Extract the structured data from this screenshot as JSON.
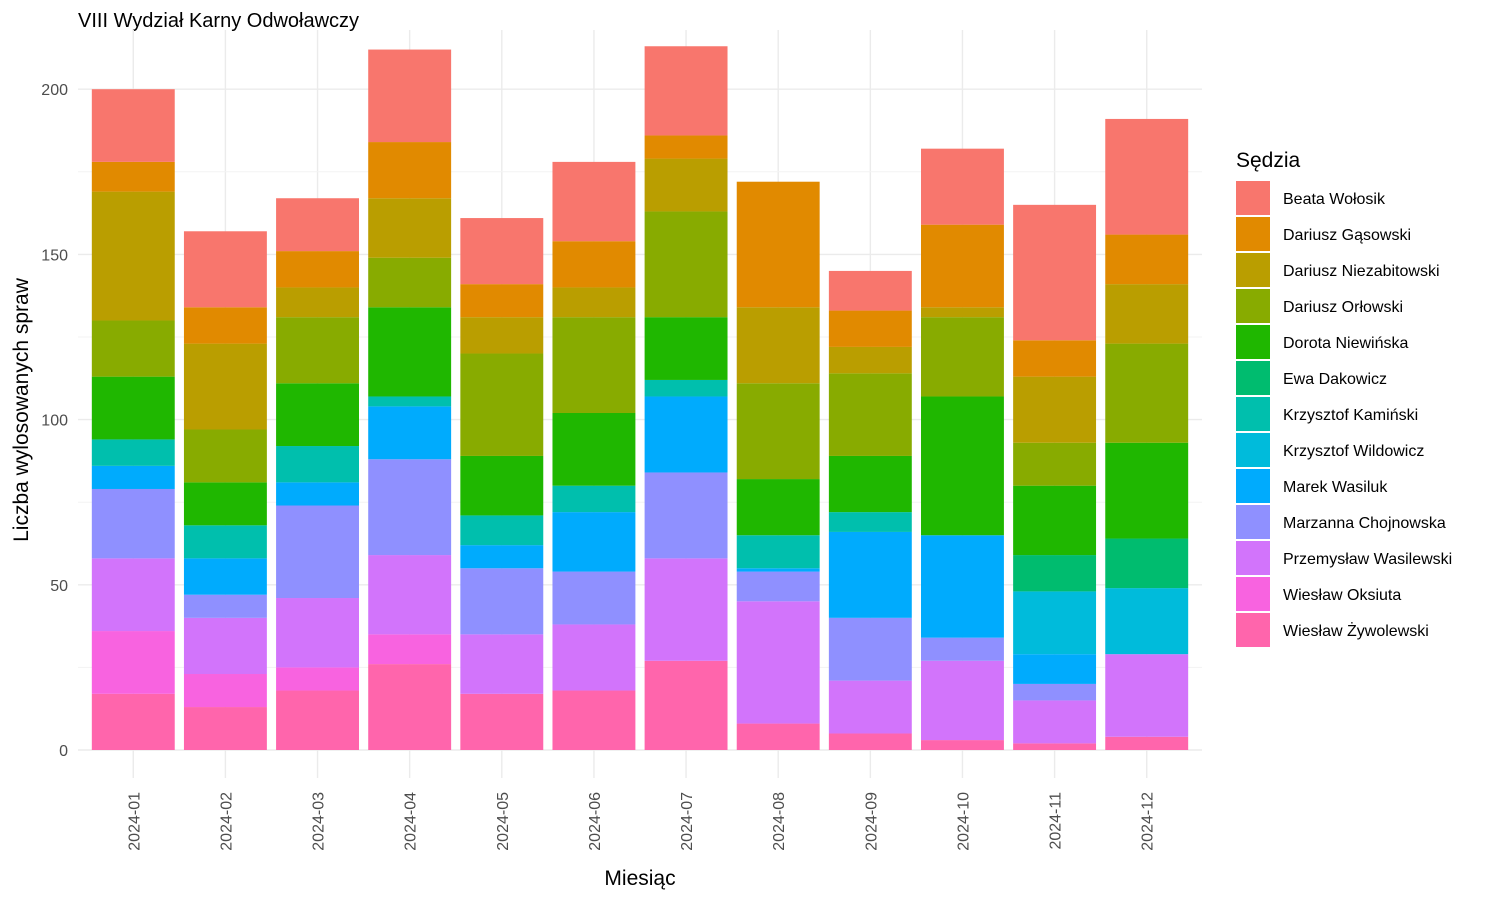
{
  "chart_data": {
    "type": "bar",
    "stacked": true,
    "title": "VIII Wydział Karny Odwoławczy",
    "xlabel": "Miesiąc",
    "ylabel": "Liczba wylosowanych spraw",
    "ylim": [
      0,
      215
    ],
    "y_ticks": [
      "0",
      "50",
      "100",
      "150",
      "200"
    ],
    "grid": true,
    "legend_title": "Sędzia",
    "legend_position": "right",
    "categories": [
      "2024-01",
      "2024-02",
      "2024-03",
      "2024-04",
      "2024-05",
      "2024-06",
      "2024-07",
      "2024-08",
      "2024-09",
      "2024-10",
      "2024-11",
      "2024-12"
    ],
    "series": [
      {
        "name": "Wiesław Żywolewski",
        "color": "#FF65AC",
        "values": [
          17,
          13,
          18,
          26,
          17,
          18,
          27,
          8,
          5,
          3,
          2,
          4
        ]
      },
      {
        "name": "Wiesław Oksiuta",
        "color": "#F863E0",
        "values": [
          19,
          10,
          7,
          9,
          0,
          0,
          0,
          0,
          0,
          0,
          0,
          0
        ]
      },
      {
        "name": "Przemysław Wasilewski",
        "color": "#D274FB",
        "values": [
          22,
          17,
          21,
          24,
          18,
          20,
          31,
          37,
          16,
          24,
          13,
          25
        ]
      },
      {
        "name": "Marzanna Chojnowska",
        "color": "#8F90FF",
        "values": [
          21,
          7,
          28,
          29,
          20,
          16,
          26,
          9,
          19,
          7,
          5,
          0
        ]
      },
      {
        "name": "Marek Wasiluk",
        "color": "#00ABFD",
        "values": [
          7,
          11,
          7,
          16,
          7,
          18,
          23,
          1,
          26,
          31,
          9,
          0
        ]
      },
      {
        "name": "Krzysztof Wildowicz",
        "color": "#00BBDB",
        "values": [
          0,
          0,
          0,
          0,
          0,
          0,
          0,
          0,
          0,
          0,
          19,
          20
        ]
      },
      {
        "name": "Krzysztof Kamiński",
        "color": "#00BFAD",
        "values": [
          8,
          10,
          11,
          3,
          9,
          8,
          5,
          10,
          6,
          0,
          0,
          0
        ]
      },
      {
        "name": "Ewa Dakowicz",
        "color": "#00BC6F",
        "values": [
          0,
          0,
          0,
          0,
          0,
          0,
          0,
          0,
          0,
          0,
          11,
          15
        ]
      },
      {
        "name": "Dorota Niewińska",
        "color": "#1FB700",
        "values": [
          19,
          13,
          19,
          27,
          18,
          22,
          19,
          17,
          17,
          42,
          21,
          29
        ]
      },
      {
        "name": "Dariusz Orłowski",
        "color": "#88AB00",
        "values": [
          17,
          16,
          20,
          15,
          31,
          29,
          32,
          29,
          25,
          24,
          13,
          30
        ]
      },
      {
        "name": "Dariusz Niezabitowski",
        "color": "#BA9E00",
        "values": [
          39,
          26,
          9,
          18,
          11,
          9,
          16,
          23,
          8,
          3,
          20,
          18
        ]
      },
      {
        "name": "Dariusz Gąsowski",
        "color": "#E18A00",
        "values": [
          9,
          11,
          11,
          17,
          10,
          14,
          7,
          38,
          11,
          25,
          11,
          15
        ]
      },
      {
        "name": "Beata Wołosik",
        "color": "#F8766D",
        "values": [
          22,
          23,
          16,
          28,
          20,
          24,
          27,
          0,
          12,
          23,
          41,
          35
        ]
      }
    ]
  }
}
